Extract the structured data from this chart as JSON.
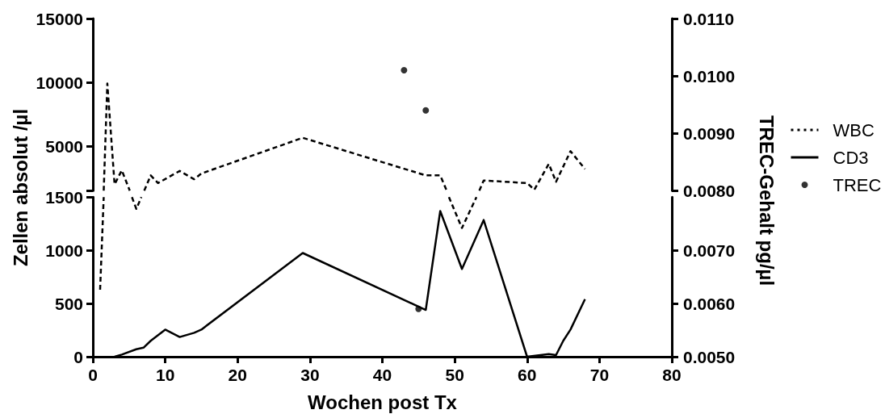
{
  "chart_data": [
    {
      "type": "line",
      "tick_labels": "y",
      "xlim": [
        0,
        80
      ],
      "ylim": [
        1500,
        15000
      ],
      "yticks": [
        {
          "value": 1500,
          "label": null
        },
        5000,
        10000,
        15000
      ],
      "y2lim": [
        0.008,
        0.011
      ],
      "y2ticks": [
        {
          "value": 0.008,
          "label": "0.0080"
        },
        {
          "value": 0.009,
          "label": "0.0090"
        },
        {
          "value": 0.01,
          "label": "0.0100"
        },
        {
          "value": 0.011,
          "label": "0.0110"
        }
      ],
      "series": [
        {
          "color": "#000000",
          "line_style": "dashed",
          "marker": "none",
          "x": [
            1.5,
            2,
            3,
            4,
            5.1,
            6,
            7.1,
            8,
            9,
            12,
            14,
            15,
            29,
            46,
            48,
            48.9,
            51,
            53.4,
            54,
            60,
            61,
            63,
            64,
            66,
            68
          ],
          "values": [
            1500,
            9900,
            2000,
            3100,
            1500,
            null,
            1500,
            2700,
            2100,
            3050,
            2400,
            2850,
            5650,
            2700,
            2700,
            1500,
            null,
            1500,
            2300,
            2100,
            1580,
            3600,
            2200,
            4600,
            3200
          ]
        },
        {
          "type": "scatter",
          "axis": "y2",
          "marker": "circle",
          "color": "#000000",
          "x": [
            43,
            46
          ],
          "values": [
            0.0101,
            0.0094
          ]
        }
      ]
    },
    {
      "type": "line",
      "xlabel": "Wochen post Tx",
      "ylabel": "Zellen absolut /µl",
      "y2label": "TREC-Gehalt pg/µl",
      "xlim": [
        0,
        80
      ],
      "xticks": [
        0,
        10,
        20,
        30,
        40,
        50,
        60,
        70,
        80
      ],
      "ylim": [
        0,
        1500
      ],
      "yticks": [
        0,
        500,
        1000,
        1500
      ],
      "y2lim": [
        0.005,
        0.008
      ],
      "y2ticks": [
        {
          "value": 0.005,
          "label": "0.0050"
        },
        {
          "value": 0.006,
          "label": "0.0060"
        },
        {
          "value": 0.007,
          "label": "0.0070"
        }
      ],
      "legend": "right",
      "series": [
        {
          "name": "WBC",
          "color": "#000000",
          "line_style": "dashed",
          "marker": "none",
          "x": [
            1,
            1.5,
            4,
            5.4,
            6,
            6.7,
            29,
            49.2,
            51,
            53
          ],
          "values": [
            630,
            1500,
            null,
            1500,
            1390,
            1500,
            null,
            1500,
            1210,
            1500
          ]
        },
        {
          "name": "CD3",
          "color": "#000000",
          "line_style": "solid",
          "marker": "none",
          "x": [
            3,
            4,
            6,
            7,
            8,
            10,
            12,
            14,
            15,
            29,
            46,
            48,
            51,
            54,
            60,
            63,
            64,
            65,
            66,
            68
          ],
          "values": [
            0,
            20,
            70,
            85,
            150,
            255,
            185,
            225,
            255,
            975,
            440,
            1370,
            825,
            1285,
            0,
            25,
            15,
            150,
            255,
            540
          ]
        },
        {
          "name": "TREC",
          "type": "scatter",
          "axis": "y2",
          "marker": "circle",
          "color": "#000000",
          "x": [
            45
          ],
          "values": [
            0.0059
          ]
        }
      ]
    }
  ]
}
